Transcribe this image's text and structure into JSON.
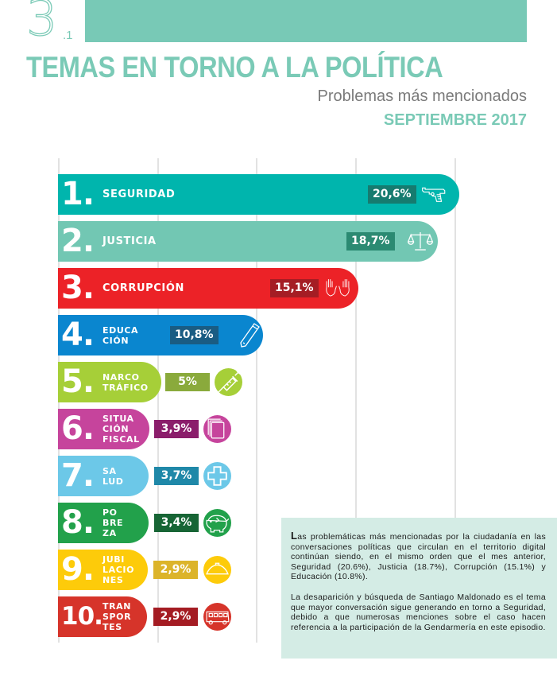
{
  "header": {
    "section_number": "3",
    "section_sub": ".1",
    "title": "TEMAS EN TORNO A LA POLÍTICA",
    "subtitle": "Problemas más mencionados",
    "period": "SEPTIEMBRE 2017"
  },
  "colors": {
    "brand_teal": "#78c9b6"
  },
  "chart_data": {
    "type": "bar",
    "orientation": "horizontal",
    "title": "Problemas más mencionados",
    "subtitle": "SEPTIEMBRE 2017",
    "unit": "%",
    "grid": true,
    "xlim": [
      0,
      20.6
    ],
    "categories": [
      "SEGURIDAD",
      "JUSTICIA",
      "CORRUPCIÓN",
      "EDUCACIÓN",
      "NARCOTRÁFICO",
      "SITUACIÓN FISCAL",
      "SALUD",
      "POBREZA",
      "JUBILACIONES",
      "TRANSPORTES"
    ],
    "values": [
      20.6,
      18.7,
      15.1,
      10.8,
      5,
      3.9,
      3.7,
      3.4,
      2.9,
      2.9
    ],
    "items": [
      {
        "rank": "1.",
        "label_lines": [
          "SEGURIDAD"
        ],
        "value_label": "20,6%",
        "value": 20.6,
        "icon": "pistol-icon",
        "color": "#00b5ad",
        "badge_color": "#167b6f"
      },
      {
        "rank": "2.",
        "label_lines": [
          "JUSTICIA"
        ],
        "value_label": "18,7%",
        "value": 18.7,
        "icon": "scales-icon",
        "color": "#72c7b3",
        "badge_color": "#2b8a72"
      },
      {
        "rank": "3.",
        "label_lines": [
          "CORRUPCIÓN"
        ],
        "value_label": "15,1%",
        "value": 15.1,
        "icon": "raised-hands-icon",
        "color": "#ec2227",
        "badge_color": "#a51d24"
      },
      {
        "rank": "4.",
        "label_lines": [
          "EDUCA",
          "CIÓN"
        ],
        "value_label": "10,8%",
        "value": 10.8,
        "icon": "pencil-icon",
        "color": "#0a86cf",
        "badge_color": "#1a5c83"
      },
      {
        "rank": "5.",
        "label_lines": [
          "NARCO",
          "TRÁFICO"
        ],
        "value_label": "5%",
        "value": 5,
        "icon": "syringe-icon",
        "color": "#a6cf38",
        "badge_color": "#8aaa3c"
      },
      {
        "rank": "6.",
        "label_lines": [
          "SITUA",
          "CIÓN",
          "FISCAL"
        ],
        "value_label": "3,9%",
        "value": 3.9,
        "icon": "documents-icon",
        "color": "#c6449c",
        "badge_color": "#8b1e6b"
      },
      {
        "rank": "7.",
        "label_lines": [
          "SA",
          "LUD"
        ],
        "value_label": "3,7%",
        "value": 3.7,
        "icon": "health-cross-icon",
        "color": "#6cc8e8",
        "badge_color": "#1f88a8"
      },
      {
        "rank": "8.",
        "label_lines": [
          "PO",
          "BRE",
          "ZA"
        ],
        "value_label": "3,4%",
        "value": 3.4,
        "icon": "piggy-bank-icon",
        "color": "#22a14b",
        "badge_color": "#176535"
      },
      {
        "rank": "9.",
        "label_lines": [
          "JUBI",
          "LACIO",
          "NES"
        ],
        "value_label": "2,9%",
        "value": 2.9,
        "icon": "hat-icon",
        "color": "#fdcb0a",
        "badge_color": "#dcb42a"
      },
      {
        "rank": "10.",
        "label_lines": [
          "TRAN",
          "SPOR",
          "TES"
        ],
        "value_label": "2,9%",
        "value": 2.9,
        "icon": "bus-icon",
        "color": "#d6342a",
        "badge_color": "#a41c23"
      }
    ]
  },
  "note": {
    "dropcap": "L",
    "paragraph1": "as problemáticas más mencionadas por la ciudadanía en las conversaciones políticas que circulan en el territorio digital continúan siendo, en el mismo orden que el mes anterior, Seguridad (20.6%), Justicia (18.7%), Corrupción (15.1%) y Educación (10.8%).",
    "paragraph2": "La desaparición y búsqueda de Santiago Maldonado es el tema que mayor conversación sigue generando en torno a Seguridad, debido a que numerosas menciones sobre el caso hacen referencia a la participación de la Gendarmería en este episodio."
  }
}
